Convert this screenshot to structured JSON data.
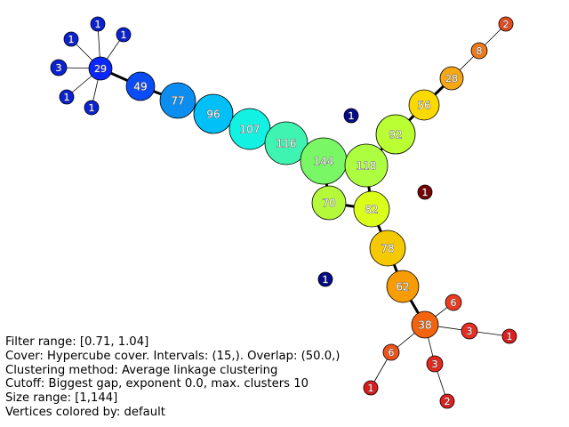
{
  "graph": {
    "nodes": [
      {
        "id": "n29",
        "label": "29",
        "color": "#0a27ff"
      },
      {
        "id": "n49",
        "label": "49",
        "color": "#0b4cf6"
      },
      {
        "id": "n77",
        "label": "77",
        "color": "#0b8ef0"
      },
      {
        "id": "n96",
        "label": "96",
        "color": "#00c0f7"
      },
      {
        "id": "n107",
        "label": "107",
        "color": "#12f1e2"
      },
      {
        "id": "n116",
        "label": "116",
        "color": "#3ff4b0"
      },
      {
        "id": "n144",
        "label": "144",
        "color": "#79f765"
      },
      {
        "id": "n118",
        "label": "118",
        "color": "#adfe40"
      },
      {
        "id": "n92",
        "label": "92",
        "color": "#b9ff33"
      },
      {
        "id": "n70",
        "label": "70",
        "color": "#b5f93b"
      },
      {
        "id": "n82",
        "label": "82",
        "color": "#dbff1b"
      },
      {
        "id": "n78",
        "label": "78",
        "color": "#f5c901"
      },
      {
        "id": "n62",
        "label": "62",
        "color": "#f79c05"
      },
      {
        "id": "n38",
        "label": "38",
        "color": "#f4640e"
      },
      {
        "id": "n56",
        "label": "56",
        "color": "#fad900"
      },
      {
        "id": "n28",
        "label": "28",
        "color": "#f6a716"
      },
      {
        "id": "n8",
        "label": "8",
        "color": "#f07a1a"
      },
      {
        "id": "n2a",
        "label": "2",
        "color": "#e84a1e"
      },
      {
        "id": "n6a",
        "label": "6",
        "color": "#ee3b20"
      },
      {
        "id": "n3a",
        "label": "3",
        "color": "#ea2c22"
      },
      {
        "id": "n1a",
        "label": "1",
        "color": "#e31d1d"
      },
      {
        "id": "n6b",
        "label": "6",
        "color": "#f0521a"
      },
      {
        "id": "n3b",
        "label": "3",
        "color": "#e3281f"
      },
      {
        "id": "n1b",
        "label": "1",
        "color": "#de1a1a"
      },
      {
        "id": "n2b",
        "label": "2",
        "color": "#e02020"
      },
      {
        "id": "s1a",
        "label": "1",
        "color": "#0a22d6"
      },
      {
        "id": "s1b",
        "label": "1",
        "color": "#0a22d6"
      },
      {
        "id": "s1c",
        "label": "1",
        "color": "#0a22d6"
      },
      {
        "id": "s3",
        "label": "3",
        "color": "#0a22d6"
      },
      {
        "id": "s1d",
        "label": "1",
        "color": "#0a22d6"
      },
      {
        "id": "s1e",
        "label": "1",
        "color": "#0a22d6"
      },
      {
        "id": "iso1",
        "label": "1",
        "color": "#050a8a"
      },
      {
        "id": "iso2",
        "label": "1",
        "color": "#050a8a"
      },
      {
        "id": "iso3",
        "label": "1",
        "color": "#7a0000"
      }
    ],
    "edges": [
      {
        "from": "n29",
        "to": "n49",
        "weight": "thick"
      },
      {
        "from": "n49",
        "to": "n77",
        "weight": "thick"
      },
      {
        "from": "n77",
        "to": "n96",
        "weight": "thick"
      },
      {
        "from": "n96",
        "to": "n107",
        "weight": "thick"
      },
      {
        "from": "n107",
        "to": "n116",
        "weight": "thick"
      },
      {
        "from": "n116",
        "to": "n144",
        "weight": "thick"
      },
      {
        "from": "n144",
        "to": "n118",
        "weight": "thick"
      },
      {
        "from": "n144",
        "to": "n70",
        "weight": "thick"
      },
      {
        "from": "n118",
        "to": "n92",
        "weight": "thick"
      },
      {
        "from": "n118",
        "to": "n82",
        "weight": "thick"
      },
      {
        "from": "n70",
        "to": "n82",
        "weight": "thick"
      },
      {
        "from": "n92",
        "to": "n56",
        "weight": "thick"
      },
      {
        "from": "n56",
        "to": "n28",
        "weight": "thick"
      },
      {
        "from": "n28",
        "to": "n8",
        "weight": "thin"
      },
      {
        "from": "n8",
        "to": "n2a",
        "weight": "thin"
      },
      {
        "from": "n82",
        "to": "n78",
        "weight": "thick"
      },
      {
        "from": "n78",
        "to": "n62",
        "weight": "thick"
      },
      {
        "from": "n62",
        "to": "n38",
        "weight": "thick"
      },
      {
        "from": "n38",
        "to": "n6a",
        "weight": "thin"
      },
      {
        "from": "n38",
        "to": "n3a",
        "weight": "thin"
      },
      {
        "from": "n3a",
        "to": "n1a",
        "weight": "thin"
      },
      {
        "from": "n38",
        "to": "n6b",
        "weight": "thin"
      },
      {
        "from": "n6b",
        "to": "n1b",
        "weight": "thin"
      },
      {
        "from": "n38",
        "to": "n3b",
        "weight": "thin"
      },
      {
        "from": "n3b",
        "to": "n2b",
        "weight": "thin"
      },
      {
        "from": "n29",
        "to": "s1a",
        "weight": "thin"
      },
      {
        "from": "n29",
        "to": "s1b",
        "weight": "thin"
      },
      {
        "from": "n29",
        "to": "s1c",
        "weight": "thin"
      },
      {
        "from": "n29",
        "to": "s3",
        "weight": "thin"
      },
      {
        "from": "n29",
        "to": "s1d",
        "weight": "thin"
      },
      {
        "from": "n29",
        "to": "s1e",
        "weight": "thin"
      }
    ]
  },
  "info": {
    "filter_range": "Filter range: [0.71, 1.04]",
    "cover": "Cover: Hypercube cover. Intervals: (15,). Overlap: (50.0,)",
    "clustering": "Clustering method: Average linkage clustering",
    "cutoff": "Cutoff: Biggest gap, exponent 0.0, max. clusters 10",
    "size_range": "Size range: [1,144]",
    "colored_by": "Vertices colored by: default"
  }
}
